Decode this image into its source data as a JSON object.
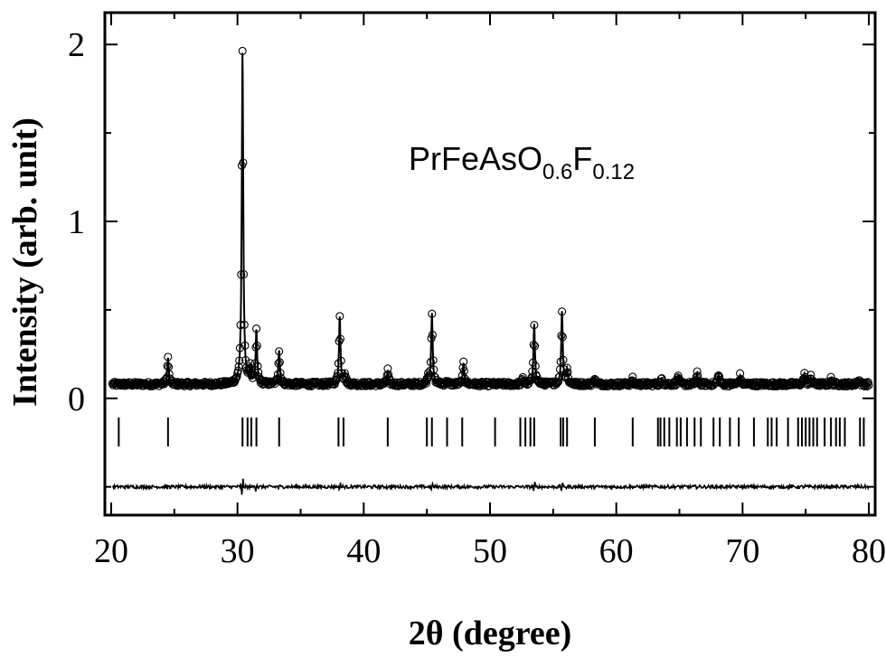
{
  "chart_data": {
    "type": "scatter",
    "title": "",
    "xlabel": "2θ (degree)",
    "ylabel": "Intensity (arb. unit)",
    "xlim": [
      19.5,
      80.5
    ],
    "ylim": [
      -0.66,
      2.18
    ],
    "x_ticks": [
      20,
      30,
      40,
      50,
      60,
      70,
      80
    ],
    "y_ticks": [
      0,
      1,
      2
    ],
    "grid": false,
    "annotation": {
      "main": "PrFeAsO",
      "sub1": "0.6",
      "mid": "F",
      "sub2": "0.12"
    },
    "background_level": 0.08,
    "difference_offset": -0.5,
    "series": [
      {
        "role": "observed",
        "style": "open-circles",
        "peaks": [
          {
            "x": 24.5,
            "y": 0.23
          },
          {
            "x": 30.4,
            "y": 1.95
          },
          {
            "x": 31.0,
            "y": 0.17
          },
          {
            "x": 31.5,
            "y": 0.38
          },
          {
            "x": 33.3,
            "y": 0.27
          },
          {
            "x": 38.1,
            "y": 0.46
          },
          {
            "x": 38.5,
            "y": 0.14
          },
          {
            "x": 41.9,
            "y": 0.16
          },
          {
            "x": 45.1,
            "y": 0.12
          },
          {
            "x": 45.4,
            "y": 0.48
          },
          {
            "x": 46.6,
            "y": 0.1
          },
          {
            "x": 47.9,
            "y": 0.2
          },
          {
            "x": 52.6,
            "y": 0.11
          },
          {
            "x": 53.5,
            "y": 0.42
          },
          {
            "x": 55.7,
            "y": 0.49
          },
          {
            "x": 56.1,
            "y": 0.16
          },
          {
            "x": 58.3,
            "y": 0.12
          },
          {
            "x": 61.3,
            "y": 0.11
          },
          {
            "x": 63.6,
            "y": 0.11
          },
          {
            "x": 64.9,
            "y": 0.13
          },
          {
            "x": 66.4,
            "y": 0.14
          },
          {
            "x": 68.1,
            "y": 0.14
          },
          {
            "x": 69.8,
            "y": 0.13
          },
          {
            "x": 74.9,
            "y": 0.14
          },
          {
            "x": 75.4,
            "y": 0.12
          },
          {
            "x": 77.0,
            "y": 0.11
          },
          {
            "x": 79.2,
            "y": 0.11
          }
        ]
      },
      {
        "role": "calculated",
        "style": "line"
      },
      {
        "role": "difference",
        "style": "line"
      }
    ],
    "bragg_positions": [
      20.6,
      24.5,
      30.4,
      30.8,
      31.1,
      31.5,
      33.3,
      38.0,
      38.4,
      41.9,
      45.0,
      45.4,
      46.6,
      47.8,
      50.4,
      52.4,
      52.8,
      53.2,
      53.5,
      55.6,
      55.8,
      56.1,
      58.3,
      61.3,
      63.3,
      63.5,
      63.8,
      64.2,
      64.8,
      65.1,
      65.6,
      66.2,
      66.7,
      67.7,
      68.2,
      69.0,
      69.7,
      70.9,
      72.0,
      72.3,
      72.7,
      73.6,
      74.4,
      74.7,
      75.0,
      75.3,
      75.6,
      75.9,
      76.5,
      77.0,
      77.4,
      77.7,
      78.1,
      79.3,
      79.6
    ]
  }
}
